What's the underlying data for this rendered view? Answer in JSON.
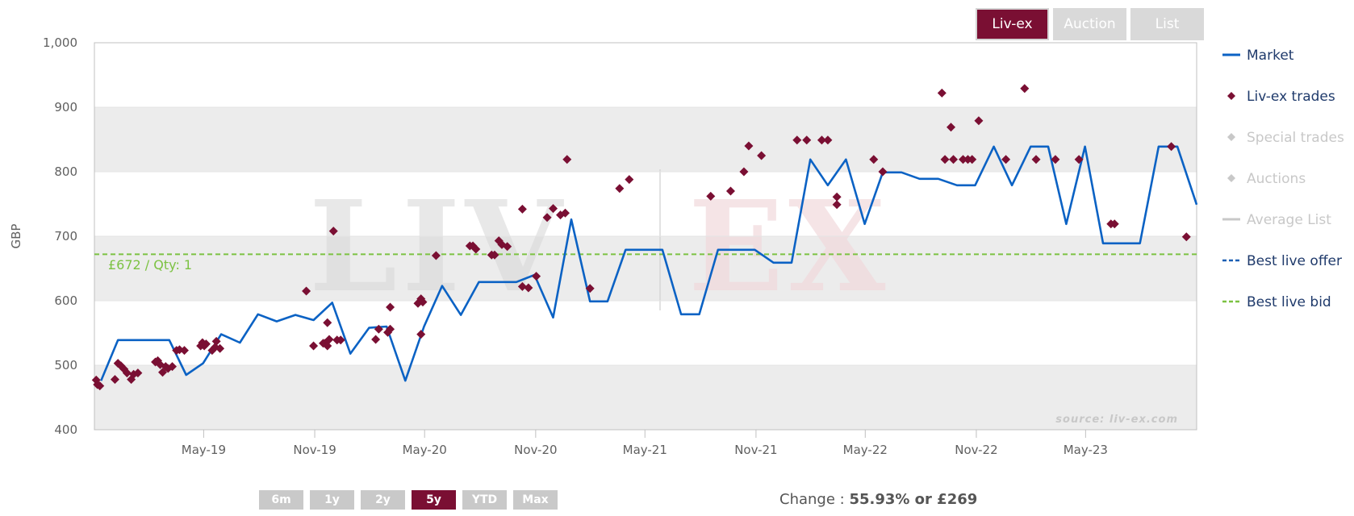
{
  "tabs": [
    {
      "label": "Liv-ex",
      "active": true
    },
    {
      "label": "Auction",
      "active": false
    },
    {
      "label": "List",
      "active": false
    }
  ],
  "ranges": [
    {
      "label": "6m",
      "active": false
    },
    {
      "label": "1y",
      "active": false
    },
    {
      "label": "2y",
      "active": false
    },
    {
      "label": "5y",
      "active": true
    },
    {
      "label": "YTD",
      "active": false
    },
    {
      "label": "Max",
      "active": false
    }
  ],
  "change": {
    "label": "Change :",
    "value": "55.93% or £269"
  },
  "watermark": {
    "left": "LIV",
    "right": "EX",
    "source": "source: liv-ex.com"
  },
  "colors": {
    "market": "#0b62c4",
    "trades": "#7a0f33",
    "bid": "#7cc242",
    "offer": "#1a5fb4",
    "muted": "#c8c8c8",
    "band": "#ececec"
  },
  "chart_data": {
    "type": "line",
    "ylabel": "GBP",
    "ylim": [
      400,
      1000
    ],
    "yticks": [
      "400",
      "500",
      "600",
      "700",
      "800",
      "900",
      "1,000"
    ],
    "xrange": [
      "2018-11-01",
      "2023-11-01"
    ],
    "xticks": [
      "May-19",
      "Nov-19",
      "May-20",
      "Nov-20",
      "May-21",
      "Nov-21",
      "May-22",
      "Nov-22",
      "May-23"
    ],
    "grid": true,
    "legend_position": "right",
    "best_live_bid": {
      "value": 672,
      "label": "£672 / Qty: 1"
    },
    "legend": [
      {
        "name": "Market",
        "type": "line",
        "enabled": true
      },
      {
        "name": "Liv-ex trades",
        "type": "diamond",
        "enabled": true
      },
      {
        "name": "Special trades",
        "type": "diamond",
        "enabled": false
      },
      {
        "name": "Auctions",
        "type": "diamond",
        "enabled": false
      },
      {
        "name": "Average List",
        "type": "line",
        "enabled": false
      },
      {
        "name": "Best live offer",
        "type": "dashed",
        "enabled": true
      },
      {
        "name": "Best live bid",
        "type": "dashed",
        "enabled": true
      }
    ],
    "market": {
      "name": "Market",
      "points": [
        [
          "2018-11-12",
          476
        ],
        [
          "2018-12-10",
          539
        ],
        [
          "2019-01-08",
          539
        ],
        [
          "2019-02-05",
          539
        ],
        [
          "2019-03-05",
          539
        ],
        [
          "2019-04-02",
          485
        ],
        [
          "2019-04-30",
          503
        ],
        [
          "2019-05-30",
          548
        ],
        [
          "2019-06-30",
          535
        ],
        [
          "2019-07-30",
          579
        ],
        [
          "2019-08-30",
          568
        ],
        [
          "2019-09-30",
          578
        ],
        [
          "2019-10-30",
          570
        ],
        [
          "2019-11-30",
          597
        ],
        [
          "2019-12-30",
          518
        ],
        [
          "2020-01-30",
          558
        ],
        [
          "2020-02-28",
          560
        ],
        [
          "2020-03-30",
          476
        ],
        [
          "2020-04-30",
          560
        ],
        [
          "2020-05-30",
          623
        ],
        [
          "2020-06-30",
          578
        ],
        [
          "2020-07-30",
          629
        ],
        [
          "2020-08-30",
          629
        ],
        [
          "2020-09-30",
          629
        ],
        [
          "2020-10-30",
          640
        ],
        [
          "2020-11-30",
          574
        ],
        [
          "2020-12-30",
          726
        ],
        [
          "2021-01-30",
          599
        ],
        [
          "2021-02-28",
          599
        ],
        [
          "2021-03-30",
          679
        ],
        [
          "2021-04-30",
          679
        ],
        [
          "2021-05-30",
          679
        ],
        [
          "2021-06-30",
          579
        ],
        [
          "2021-07-30",
          579
        ],
        [
          "2021-08-30",
          679
        ],
        [
          "2021-09-30",
          679
        ],
        [
          "2021-10-30",
          679
        ],
        [
          "2021-11-30",
          659
        ],
        [
          "2021-12-30",
          659
        ],
        [
          "2022-01-30",
          819
        ],
        [
          "2022-02-28",
          779
        ],
        [
          "2022-03-30",
          819
        ],
        [
          "2022-04-30",
          719
        ],
        [
          "2022-05-30",
          799
        ],
        [
          "2022-06-30",
          799
        ],
        [
          "2022-07-30",
          789
        ],
        [
          "2022-08-30",
          789
        ],
        [
          "2022-09-30",
          779
        ],
        [
          "2022-10-30",
          779
        ],
        [
          "2022-11-30",
          839
        ],
        [
          "2022-12-30",
          779
        ],
        [
          "2023-01-30",
          839
        ],
        [
          "2023-02-28",
          839
        ],
        [
          "2023-03-30",
          719
        ],
        [
          "2023-04-30",
          839
        ],
        [
          "2023-05-30",
          689
        ],
        [
          "2023-06-30",
          689
        ],
        [
          "2023-07-30",
          689
        ],
        [
          "2023-08-30",
          839
        ],
        [
          "2023-09-30",
          839
        ],
        [
          "2023-11-01",
          749
        ]
      ]
    },
    "trades": {
      "name": "Liv-ex trades",
      "points": [
        [
          "2018-11-04",
          477
        ],
        [
          "2018-11-06",
          470
        ],
        [
          "2018-11-10",
          468
        ],
        [
          "2018-12-05",
          478
        ],
        [
          "2018-12-10",
          503
        ],
        [
          "2018-12-15",
          499
        ],
        [
          "2018-12-20",
          494
        ],
        [
          "2018-12-25",
          488
        ],
        [
          "2019-01-01",
          478
        ],
        [
          "2019-01-05",
          486
        ],
        [
          "2019-01-12",
          488
        ],
        [
          "2019-02-10",
          505
        ],
        [
          "2019-02-14",
          507
        ],
        [
          "2019-02-18",
          501
        ],
        [
          "2019-02-22",
          489
        ],
        [
          "2019-02-27",
          498
        ],
        [
          "2019-03-03",
          495
        ],
        [
          "2019-03-10",
          498
        ],
        [
          "2019-03-17",
          523
        ],
        [
          "2019-03-22",
          524
        ],
        [
          "2019-03-30",
          523
        ],
        [
          "2019-04-26",
          530
        ],
        [
          "2019-04-29",
          535
        ],
        [
          "2019-05-02",
          530
        ],
        [
          "2019-05-05",
          533
        ],
        [
          "2019-05-15",
          523
        ],
        [
          "2019-05-20",
          528
        ],
        [
          "2019-05-28",
          526
        ],
        [
          "2019-05-22",
          537
        ],
        [
          "2019-10-18",
          615
        ],
        [
          "2019-10-30",
          530
        ],
        [
          "2019-11-15",
          534
        ],
        [
          "2019-11-18",
          534
        ],
        [
          "2019-11-22",
          530
        ],
        [
          "2019-11-25",
          540
        ],
        [
          "2019-11-22",
          566
        ],
        [
          "2019-12-02",
          708
        ],
        [
          "2019-12-08",
          539
        ],
        [
          "2019-12-14",
          539
        ],
        [
          "2020-02-10",
          540
        ],
        [
          "2020-02-15",
          556
        ],
        [
          "2020-03-01",
          551
        ],
        [
          "2020-03-05",
          556
        ],
        [
          "2020-03-05",
          590
        ],
        [
          "2020-04-20",
          596
        ],
        [
          "2020-04-25",
          603
        ],
        [
          "2020-04-28",
          598
        ],
        [
          "2020-04-25",
          548
        ],
        [
          "2020-05-20",
          670
        ],
        [
          "2020-07-15",
          685
        ],
        [
          "2020-07-20",
          685
        ],
        [
          "2020-07-25",
          680
        ],
        [
          "2020-08-20",
          671
        ],
        [
          "2020-08-25",
          671
        ],
        [
          "2020-09-01",
          693
        ],
        [
          "2020-09-06",
          687
        ],
        [
          "2020-09-15",
          684
        ],
        [
          "2020-10-10",
          742
        ],
        [
          "2020-10-20",
          620
        ],
        [
          "2020-10-10",
          622
        ],
        [
          "2020-11-02",
          638
        ],
        [
          "2020-11-20",
          729
        ],
        [
          "2020-11-30",
          743
        ],
        [
          "2020-12-12",
          733
        ],
        [
          "2020-12-20",
          736
        ],
        [
          "2020-12-23",
          819
        ],
        [
          "2021-01-30",
          619
        ],
        [
          "2021-03-20",
          774
        ],
        [
          "2021-04-05",
          788
        ],
        [
          "2021-08-18",
          762
        ],
        [
          "2021-09-20",
          770
        ],
        [
          "2021-10-12",
          800
        ],
        [
          "2021-10-20",
          840
        ],
        [
          "2021-11-10",
          825
        ],
        [
          "2022-01-08",
          849
        ],
        [
          "2022-01-24",
          849
        ],
        [
          "2022-02-18",
          849
        ],
        [
          "2022-02-28",
          849
        ],
        [
          "2022-03-15",
          761
        ],
        [
          "2022-03-15",
          749
        ],
        [
          "2022-05-15",
          819
        ],
        [
          "2022-05-30",
          800
        ],
        [
          "2022-09-05",
          922
        ],
        [
          "2022-09-10",
          819
        ],
        [
          "2022-09-20",
          869
        ],
        [
          "2022-09-24",
          819
        ],
        [
          "2022-10-10",
          819
        ],
        [
          "2022-10-18",
          819
        ],
        [
          "2022-10-25",
          819
        ],
        [
          "2022-11-05",
          879
        ],
        [
          "2022-12-20",
          819
        ],
        [
          "2023-01-20",
          929
        ],
        [
          "2023-02-08",
          819
        ],
        [
          "2023-03-12",
          819
        ],
        [
          "2023-04-20",
          819
        ],
        [
          "2023-06-12",
          719
        ],
        [
          "2023-06-18",
          719
        ],
        [
          "2023-09-20",
          839
        ],
        [
          "2023-10-15",
          699
        ]
      ]
    }
  }
}
